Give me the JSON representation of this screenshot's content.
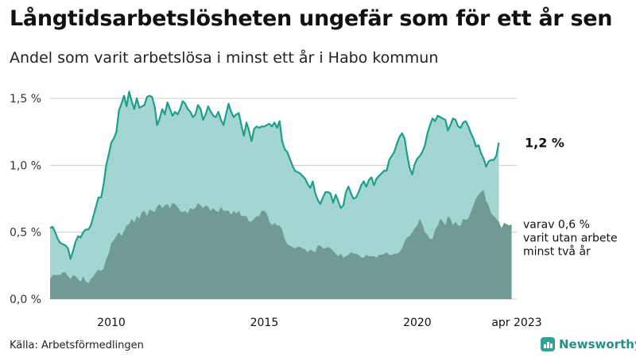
{
  "title": "Långtidsarbetslösheten ungefär som för ett år sen",
  "subtitle": "Andel som varit arbetslösa i minst ett år i Habo kommun",
  "source": "Källa: Arbetsförmedlingen",
  "brand": {
    "name": "Newsworthy",
    "icon": "newsworthy-logo-icon"
  },
  "colors": {
    "total_fill": "#a3d6d1",
    "total_line": "#1f9e8c",
    "sub_fill": "#6f9b94",
    "grid": "#cccccc"
  },
  "chart_data": {
    "type": "area",
    "start": [
      2008,
      1
    ],
    "end": [
      2023,
      4
    ],
    "ylim": [
      0,
      1.5
    ],
    "yticks": [
      0,
      0.5,
      1.0,
      1.5
    ],
    "ytick_labels": [
      "0,0 %",
      "0,5 %",
      "1,0 %",
      "1,5 %"
    ],
    "xticks": [
      {
        "year": 2010,
        "month": 1,
        "label": "2010"
      },
      {
        "year": 2015,
        "month": 1,
        "label": "2015"
      },
      {
        "year": 2020,
        "month": 1,
        "label": "2020"
      },
      {
        "year": 2023,
        "month": 4,
        "label": "apr 2023"
      }
    ],
    "end_label": "1,2 %",
    "sub_label_lines": [
      "varav 0,6 %",
      "varit utan arbete",
      "minst två år"
    ],
    "series": [
      {
        "values": [
          0.53,
          0.54,
          0.5,
          0.45,
          0.42,
          0.41,
          0.4,
          0.38,
          0.3,
          0.36,
          0.43,
          0.47,
          0.46,
          0.5,
          0.52,
          0.52,
          0.55,
          0.62,
          0.69,
          0.76,
          0.76,
          0.86,
          1.0,
          1.08,
          1.17,
          1.2,
          1.25,
          1.41,
          1.46,
          1.52,
          1.44,
          1.55,
          1.48,
          1.42,
          1.5,
          1.43,
          1.44,
          1.45,
          1.51,
          1.52,
          1.51,
          1.44,
          1.3,
          1.35,
          1.42,
          1.38,
          1.47,
          1.42,
          1.37,
          1.4,
          1.38,
          1.42,
          1.48,
          1.46,
          1.42,
          1.4,
          1.36,
          1.38,
          1.45,
          1.42,
          1.34,
          1.38,
          1.44,
          1.4,
          1.37,
          1.36,
          1.4,
          1.34,
          1.3,
          1.38,
          1.46,
          1.4,
          1.36,
          1.38,
          1.39,
          1.3,
          1.22,
          1.32,
          1.26,
          1.18,
          1.27,
          1.29,
          1.28,
          1.29,
          1.29,
          1.3,
          1.31,
          1.29,
          1.32,
          1.28,
          1.33,
          1.18,
          1.12,
          1.1,
          1.05,
          1.0,
          0.96,
          0.95,
          0.94,
          0.92,
          0.9,
          0.86,
          0.83,
          0.88,
          0.79,
          0.74,
          0.71,
          0.76,
          0.8,
          0.8,
          0.79,
          0.72,
          0.78,
          0.73,
          0.68,
          0.7,
          0.8,
          0.84,
          0.79,
          0.75,
          0.76,
          0.8,
          0.85,
          0.88,
          0.84,
          0.89,
          0.91,
          0.85,
          0.9,
          0.92,
          0.94,
          0.96,
          0.96,
          1.04,
          1.07,
          1.1,
          1.16,
          1.21,
          1.24,
          1.2,
          1.08,
          0.98,
          0.93,
          1.01,
          1.05,
          1.07,
          1.1,
          1.15,
          1.24,
          1.3,
          1.35,
          1.33,
          1.37,
          1.36,
          1.35,
          1.34,
          1.26,
          1.3,
          1.35,
          1.34,
          1.29,
          1.28,
          1.32,
          1.33,
          1.29,
          1.24,
          1.2,
          1.14,
          1.15,
          1.09,
          1.05,
          0.99,
          1.03,
          1.04,
          1.04,
          1.07,
          1.17
        ]
      },
      {
        "values": [
          0.15,
          0.18,
          0.18,
          0.18,
          0.18,
          0.2,
          0.2,
          0.17,
          0.15,
          0.18,
          0.17,
          0.15,
          0.13,
          0.17,
          0.13,
          0.12,
          0.15,
          0.17,
          0.2,
          0.22,
          0.21,
          0.23,
          0.3,
          0.34,
          0.42,
          0.44,
          0.47,
          0.5,
          0.47,
          0.51,
          0.55,
          0.56,
          0.6,
          0.57,
          0.62,
          0.6,
          0.65,
          0.66,
          0.62,
          0.67,
          0.66,
          0.65,
          0.69,
          0.71,
          0.68,
          0.7,
          0.71,
          0.68,
          0.72,
          0.71,
          0.69,
          0.66,
          0.65,
          0.66,
          0.64,
          0.68,
          0.67,
          0.68,
          0.72,
          0.7,
          0.68,
          0.7,
          0.69,
          0.66,
          0.68,
          0.66,
          0.65,
          0.69,
          0.66,
          0.66,
          0.66,
          0.63,
          0.66,
          0.64,
          0.66,
          0.62,
          0.62,
          0.62,
          0.58,
          0.58,
          0.6,
          0.62,
          0.62,
          0.66,
          0.66,
          0.64,
          0.58,
          0.55,
          0.57,
          0.55,
          0.55,
          0.52,
          0.45,
          0.41,
          0.4,
          0.39,
          0.38,
          0.39,
          0.39,
          0.38,
          0.37,
          0.35,
          0.37,
          0.36,
          0.35,
          0.4,
          0.4,
          0.38,
          0.38,
          0.39,
          0.38,
          0.36,
          0.34,
          0.32,
          0.34,
          0.31,
          0.32,
          0.33,
          0.35,
          0.34,
          0.34,
          0.33,
          0.31,
          0.31,
          0.33,
          0.32,
          0.32,
          0.32,
          0.31,
          0.33,
          0.33,
          0.34,
          0.35,
          0.33,
          0.33,
          0.34,
          0.34,
          0.35,
          0.38,
          0.43,
          0.46,
          0.47,
          0.5,
          0.53,
          0.55,
          0.6,
          0.56,
          0.5,
          0.48,
          0.45,
          0.45,
          0.52,
          0.55,
          0.6,
          0.58,
          0.55,
          0.62,
          0.6,
          0.55,
          0.58,
          0.55,
          0.55,
          0.6,
          0.59,
          0.6,
          0.65,
          0.7,
          0.75,
          0.78,
          0.8,
          0.82,
          0.73,
          0.7,
          0.64,
          0.62,
          0.6,
          0.58,
          0.53,
          0.57,
          0.56,
          0.55,
          0.56
        ]
      }
    ]
  }
}
